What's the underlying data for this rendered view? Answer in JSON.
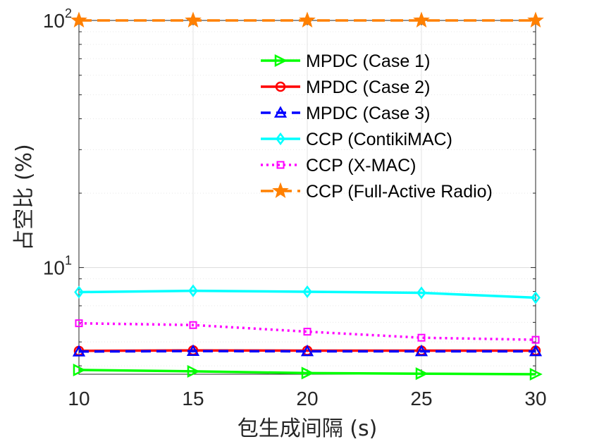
{
  "chart_data": {
    "type": "line",
    "xlabel": "包生成间隔 (s)",
    "ylabel": "占空比 (%)",
    "xlim": [
      10,
      30
    ],
    "ylim": [
      3.7,
      100
    ],
    "yscale": "log",
    "grid": true,
    "legend_position": "top-right",
    "x": [
      10,
      15,
      20,
      25,
      30
    ],
    "x_ticks": [
      "10",
      "15",
      "20",
      "25",
      "30"
    ],
    "y_ticks": [
      {
        "value": 10,
        "base": "10",
        "exp": "1"
      },
      {
        "value": 100,
        "base": "10",
        "exp": "2"
      }
    ],
    "series": [
      {
        "name": "MPDC (Case 1)",
        "color": "#00ff00",
        "marker": "triangle-right",
        "dash": "solid",
        "values": [
          3.85,
          3.8,
          3.74,
          3.72,
          3.7
        ]
      },
      {
        "name": "MPDC (Case 2)",
        "color": "#ff0000",
        "marker": "circle",
        "dash": "solid",
        "values": [
          4.6,
          4.62,
          4.61,
          4.61,
          4.61
        ]
      },
      {
        "name": "MPDC (Case 3)",
        "color": "#0000ff",
        "marker": "triangle-up",
        "dash": "dashed",
        "values": [
          4.57,
          4.59,
          4.58,
          4.58,
          4.58
        ]
      },
      {
        "name": "CCP (ContikiMAC)",
        "color": "#00ffff",
        "marker": "diamond",
        "dash": "solid",
        "values": [
          7.95,
          8.05,
          7.98,
          7.9,
          7.55
        ]
      },
      {
        "name": "CCP (X-MAC)",
        "color": "#ff00ff",
        "marker": "square",
        "dash": "dotted",
        "values": [
          5.95,
          5.85,
          5.5,
          5.2,
          5.1
        ]
      },
      {
        "name": "CCP (Full-Active Radio)",
        "color": "#ff8000",
        "marker": "star",
        "dash": "long-dash",
        "values": [
          100,
          100,
          100,
          100,
          100
        ]
      }
    ]
  }
}
